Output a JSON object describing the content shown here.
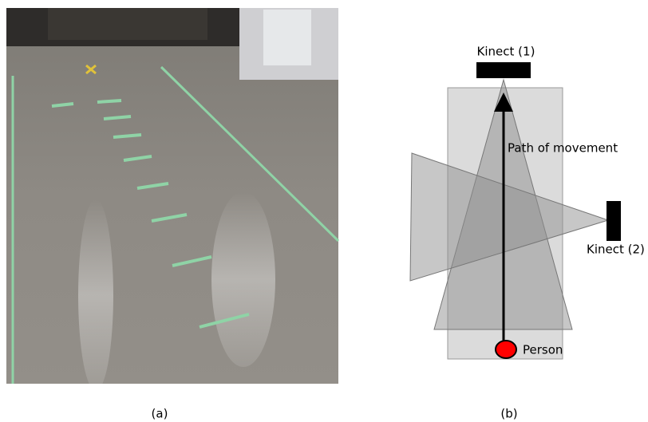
{
  "panel_a": {
    "caption": "(a)"
  },
  "panel_b": {
    "caption": "(b)",
    "sensor_1": "Kinect (1)",
    "sensor_2": "Kinect (2)",
    "path": "Path of movement",
    "subject": "Person"
  }
}
